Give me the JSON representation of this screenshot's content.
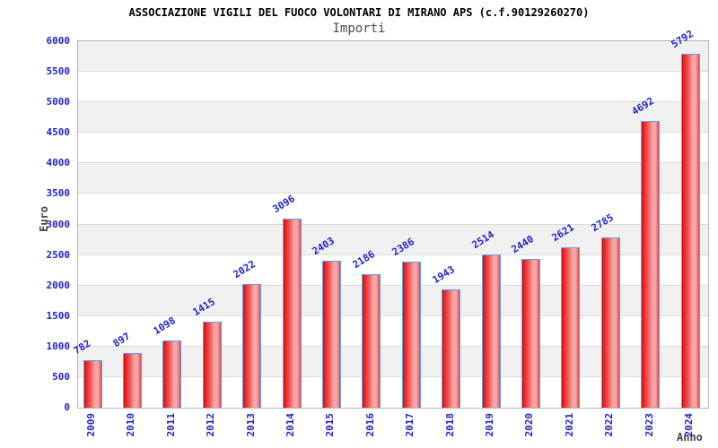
{
  "chart_data": {
    "type": "bar",
    "title": "ASSOCIAZIONE VIGILI DEL FUOCO VOLONTARI DI MIRANO APS (c.f.90129260270)",
    "subtitle": "Importi",
    "xlabel": "Anno",
    "ylabel": "Euro",
    "categories": [
      "2009",
      "2010",
      "2011",
      "2012",
      "2013",
      "2014",
      "2015",
      "2016",
      "2017",
      "2018",
      "2019",
      "2020",
      "2021",
      "2022",
      "2023",
      "2024"
    ],
    "values": [
      782,
      897,
      1098,
      1415,
      2022,
      3096,
      2403,
      2186,
      2386,
      1943,
      2514,
      2440,
      2621,
      2785,
      4692,
      5792
    ],
    "ylim": [
      0,
      6000
    ],
    "ytick_step": 500,
    "legend": "none",
    "grid": "alternating horizontal bands every 500, gray band at top",
    "colors": {
      "bar_fill_edge": "#e31b1b",
      "bar_fill_center": "#f7a3a3",
      "bar_border": "#5f9fee",
      "tick_label": "#2222cc",
      "axis_title": "#444444",
      "band_alt": "#f0f0f0",
      "band_base": "#ffffff",
      "gridline": "#dcdcdc",
      "plot_border": "#b4b4b4",
      "title_color": "#000000",
      "subtitle_color": "#4d4d4d"
    }
  }
}
